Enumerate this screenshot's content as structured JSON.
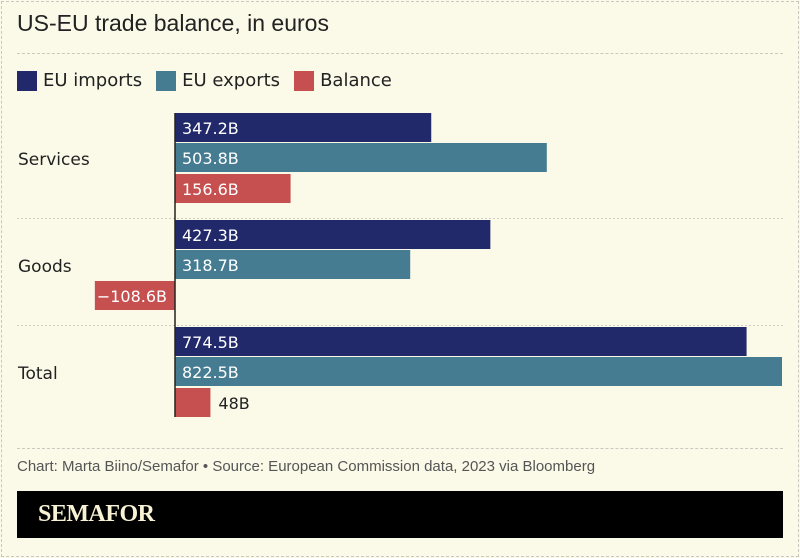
{
  "chart_data": {
    "type": "bar",
    "orientation": "horizontal",
    "title": "US-EU trade balance, in euros",
    "categories": [
      "Services",
      "Goods",
      "Total"
    ],
    "series": [
      {
        "name": "EU imports",
        "color": "#21296a",
        "values": [
          347.2,
          427.3,
          774.5
        ],
        "labels": [
          "347.2B",
          "427.3B",
          "774.5B"
        ]
      },
      {
        "name": "EU exports",
        "color": "#457c92",
        "values": [
          503.8,
          318.7,
          822.5
        ],
        "labels": [
          "503.8B",
          "318.7B",
          "822.5B"
        ]
      },
      {
        "name": "Balance",
        "color": "#c65050",
        "values": [
          156.6,
          -108.6,
          48
        ],
        "labels": [
          "156.6B",
          "−108.6B",
          "48B"
        ]
      }
    ],
    "unit": "B",
    "xlim": [
      -108.6,
      822.5
    ],
    "grid": false,
    "legend_position": "top-left"
  },
  "footer": {
    "credit": "Chart: Marta Biino/Semafor • Source: European Commission data, 2023 via Bloomberg",
    "brand": "SEMAFOR"
  }
}
